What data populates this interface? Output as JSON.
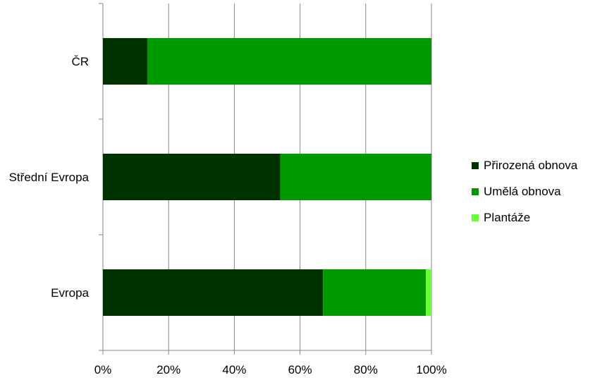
{
  "chart_data": {
    "type": "bar",
    "orientation": "horizontal",
    "stacked": "percent",
    "categories": [
      "ČR",
      "Střední Evropa",
      "Evropa"
    ],
    "series": [
      {
        "name": "Přirozená obnova",
        "color": "#003300",
        "values": [
          13.5,
          54,
          67
        ]
      },
      {
        "name": "Umělá obnova",
        "color": "#009900",
        "values": [
          86.5,
          46,
          31.3
        ]
      },
      {
        "name": "Plantáže",
        "color": "#66ff33",
        "values": [
          0,
          0,
          1.7
        ]
      }
    ],
    "x_ticks": [
      "0%",
      "20%",
      "40%",
      "60%",
      "80%",
      "100%"
    ],
    "xlim": [
      0,
      100
    ],
    "grid": "vertical",
    "legend_position": "right"
  }
}
